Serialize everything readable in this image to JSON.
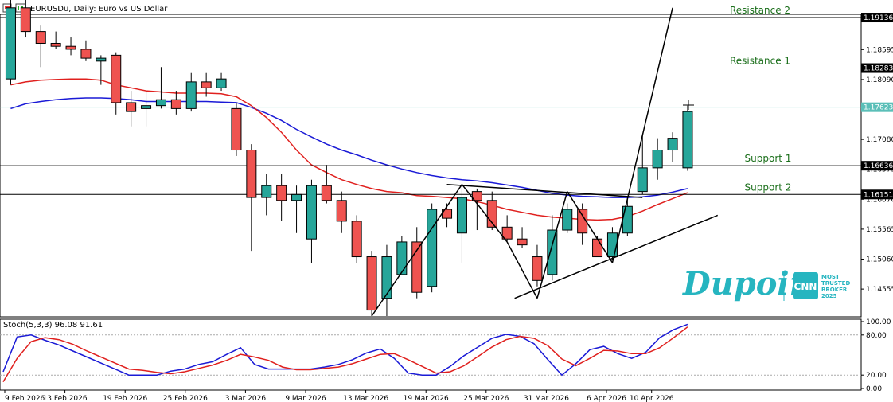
{
  "header": {
    "title": "EURUSDu, Daily:  Euro vs US Dollar",
    "icons": [
      "window-restore-icon",
      "chart-icon"
    ]
  },
  "colors": {
    "bull": "#26a69a",
    "bear": "#ef5350",
    "ma_fast": "#e0201e",
    "ma_slow": "#1a1ad6",
    "stoch_main": "#1a1ad6",
    "stoch_signal": "#e0201e",
    "brand": "#26b5c0"
  },
  "levels": [
    {
      "name": "Resistance 2",
      "price": 1.19136,
      "price_label": "1.19136"
    },
    {
      "name": "Resistance 1",
      "price": 1.18283,
      "price_label": "1.18283"
    },
    {
      "name": "Support 1",
      "price": 1.16636,
      "price_label": "1.16636"
    },
    {
      "name": "Support 2",
      "price": 1.16151,
      "price_label": "1.16151"
    }
  ],
  "current_price": {
    "price": 1.17623,
    "label": "1.17623"
  },
  "stoch": {
    "label": "Stoch(5,3,3) 96.08 91.61",
    "levels": [
      20,
      80
    ],
    "main": [
      25,
      77,
      80,
      72,
      65,
      56,
      47,
      38,
      29,
      20,
      20,
      20,
      26,
      29,
      36,
      40,
      51,
      61,
      36,
      29,
      29,
      29,
      29,
      32,
      36,
      43,
      53,
      59,
      45,
      23,
      20,
      20,
      33,
      49,
      62,
      75,
      81,
      78,
      67,
      43,
      20,
      37,
      58,
      63,
      52,
      45,
      54,
      76,
      88,
      96
    ],
    "signal": [
      10,
      45,
      70,
      76,
      73,
      66,
      56,
      47,
      38,
      29,
      27,
      24,
      22,
      25,
      30,
      35,
      42,
      51,
      47,
      42,
      32,
      28,
      28,
      30,
      32,
      37,
      44,
      51,
      52,
      43,
      33,
      23,
      25,
      34,
      48,
      62,
      73,
      78,
      75,
      64,
      44,
      34,
      45,
      57,
      56,
      52,
      52,
      61,
      76,
      92
    ]
  },
  "chart_data": {
    "type": "candlestick",
    "symbol": "EURUSDu",
    "timeframe": "Daily",
    "x_ticks": [
      "9 Feb 2026",
      "13 Feb 2026",
      "19 Feb 2026",
      "25 Feb 2026",
      "3 Mar 2026",
      "9 Mar 2026",
      "13 Mar 2026",
      "19 Mar 2026",
      "25 Mar 2026",
      "31 Mar 2026",
      "6 Apr 2026",
      "10 Apr 2026"
    ],
    "y_ticks": [
      1.18595,
      1.1809,
      1.1708,
      1.16575,
      1.1607,
      1.15565,
      1.1506,
      1.14555
    ],
    "y_tick_labels": [
      "1.18595",
      "1.18090",
      "1.17080",
      "1.16575",
      "1.16070",
      "1.15565",
      "1.15060",
      "1.14555"
    ],
    "stoch_ticks": [
      "100.00",
      "80.00",
      "20.00",
      "0.00"
    ],
    "candles": [
      [
        1.181,
        1.195,
        1.18,
        1.193
      ],
      [
        1.193,
        1.1945,
        1.188,
        1.189
      ],
      [
        1.189,
        1.19,
        1.183,
        1.187
      ],
      [
        1.187,
        1.189,
        1.186,
        1.1865
      ],
      [
        1.1865,
        1.188,
        1.185,
        1.186
      ],
      [
        1.186,
        1.1875,
        1.184,
        1.1845
      ],
      [
        1.184,
        1.185,
        1.18,
        1.1845
      ],
      [
        1.185,
        1.1855,
        1.175,
        1.177
      ],
      [
        1.177,
        1.179,
        1.173,
        1.1755
      ],
      [
        1.176,
        1.179,
        1.173,
        1.1765
      ],
      [
        1.1765,
        1.183,
        1.176,
        1.1775
      ],
      [
        1.1775,
        1.179,
        1.175,
        1.176
      ],
      [
        1.176,
        1.182,
        1.1755,
        1.1805
      ],
      [
        1.1805,
        1.182,
        1.178,
        1.1795
      ],
      [
        1.1795,
        1.182,
        1.179,
        1.181
      ],
      [
        1.176,
        1.177,
        1.168,
        1.169
      ],
      [
        1.169,
        1.17,
        1.152,
        1.161
      ],
      [
        1.161,
        1.165,
        1.158,
        1.163
      ],
      [
        1.163,
        1.165,
        1.157,
        1.1605
      ],
      [
        1.1605,
        1.163,
        1.155,
        1.1615
      ],
      [
        1.154,
        1.164,
        1.15,
        1.163
      ],
      [
        1.163,
        1.1665,
        1.16,
        1.1605
      ],
      [
        1.1605,
        1.162,
        1.155,
        1.157
      ],
      [
        1.157,
        1.158,
        1.15,
        1.151
      ],
      [
        1.151,
        1.152,
        1.141,
        1.142
      ],
      [
        1.144,
        1.153,
        1.141,
        1.151
      ],
      [
        1.148,
        1.1545,
        1.148,
        1.1535
      ],
      [
        1.1535,
        1.156,
        1.144,
        1.145
      ],
      [
        1.146,
        1.16,
        1.145,
        1.159
      ],
      [
        1.159,
        1.16,
        1.156,
        1.1575
      ],
      [
        1.155,
        1.163,
        1.15,
        1.161
      ],
      [
        1.162,
        1.1625,
        1.1555,
        1.1605
      ],
      [
        1.1605,
        1.162,
        1.1555,
        1.156
      ],
      [
        1.156,
        1.158,
        1.1535,
        1.154
      ],
      [
        1.154,
        1.156,
        1.1525,
        1.153
      ],
      [
        1.151,
        1.153,
        1.146,
        1.147
      ],
      [
        1.148,
        1.158,
        1.147,
        1.1555
      ],
      [
        1.1555,
        1.16,
        1.155,
        1.159
      ],
      [
        1.159,
        1.16,
        1.153,
        1.155
      ],
      [
        1.154,
        1.1545,
        1.151,
        1.151
      ],
      [
        1.151,
        1.156,
        1.1505,
        1.155
      ],
      [
        1.155,
        1.161,
        1.1545,
        1.1595
      ],
      [
        1.162,
        1.1715,
        1.1615,
        1.166
      ],
      [
        1.166,
        1.171,
        1.164,
        1.169
      ],
      [
        1.169,
        1.172,
        1.167,
        1.171
      ],
      [
        1.166,
        1.1765,
        1.1655,
        1.1755
      ]
    ],
    "ma_fast": [
      1.18,
      1.1805,
      1.1808,
      1.1809,
      1.181,
      1.181,
      1.1808,
      1.18,
      1.1795,
      1.179,
      1.1788,
      1.1786,
      1.1786,
      1.1786,
      1.1785,
      1.178,
      1.1765,
      1.1745,
      1.172,
      1.169,
      1.1665,
      1.1652,
      1.164,
      1.1632,
      1.1625,
      1.162,
      1.1618,
      1.1613,
      1.1612,
      1.161,
      1.1608,
      1.1603,
      1.1597,
      1.159,
      1.1585,
      1.158,
      1.1577,
      1.1575,
      1.1573,
      1.1572,
      1.1573,
      1.1578,
      1.1587,
      1.1598,
      1.1608,
      1.1618
    ],
    "ma_slow": [
      1.176,
      1.1768,
      1.1772,
      1.1775,
      1.1777,
      1.1778,
      1.1778,
      1.1777,
      1.1775,
      1.1772,
      1.1772,
      1.1772,
      1.1772,
      1.1772,
      1.1771,
      1.177,
      1.1762,
      1.1752,
      1.174,
      1.1725,
      1.1712,
      1.17,
      1.169,
      1.1682,
      1.1673,
      1.1665,
      1.1658,
      1.1652,
      1.1647,
      1.1643,
      1.164,
      1.1638,
      1.1635,
      1.1631,
      1.1627,
      1.1622,
      1.1617,
      1.1614,
      1.1612,
      1.1611,
      1.161,
      1.161,
      1.1611,
      1.1614,
      1.1619,
      1.1625
    ],
    "trendlines": [
      {
        "from": [
          24,
          1.141
        ],
        "to": [
          30,
          1.1632
        ]
      },
      {
        "from": [
          30,
          1.1632
        ],
        "to": [
          33,
          1.1535
        ]
      },
      {
        "from": [
          33,
          1.1535
        ],
        "to": [
          35,
          1.144
        ]
      },
      {
        "from": [
          35,
          1.144
        ],
        "to": [
          37,
          1.162
        ]
      },
      {
        "from": [
          37,
          1.162
        ],
        "to": [
          40,
          1.15
        ]
      },
      {
        "from": [
          40,
          1.15
        ],
        "to": [
          44,
          1.193
        ]
      },
      {
        "from": [
          29,
          1.1632
        ],
        "to": [
          42,
          1.161
        ]
      },
      {
        "from": [
          33.5,
          1.144
        ],
        "to": [
          47,
          1.158
        ]
      }
    ]
  },
  "brand": {
    "name": "Dupoin",
    "badge": "CNN",
    "tagline": [
      "MOST",
      "TRUSTED",
      "BROKER",
      "2025"
    ]
  }
}
